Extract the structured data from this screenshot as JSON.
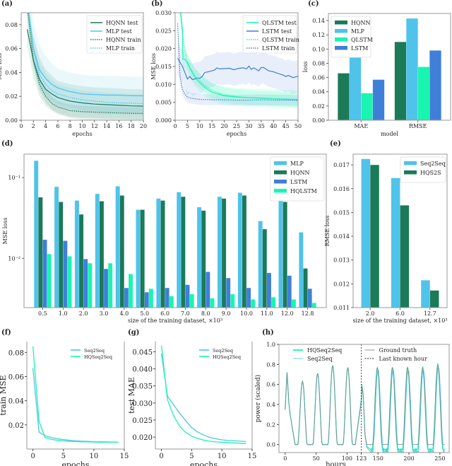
{
  "figure_labels": [
    "(a)",
    "(b)",
    "(c)",
    "(d)",
    "(e)",
    "(f)",
    "(g)",
    "(h)"
  ],
  "colors": {
    "hqnn": "#1b7a57",
    "mlp": "#4fc3ea",
    "qlstm": "#19f5b0",
    "lstm": "#3f7fd8",
    "ground_truth": "#888888",
    "axis": "#999999"
  },
  "chart_data": [
    {
      "id": "a",
      "type": "line",
      "title": "",
      "xlabel": "epochs",
      "ylabel": "MSE loss",
      "xlim": [
        0,
        20
      ],
      "ylim": [
        0,
        0.09
      ],
      "xticks": [
        0,
        2,
        4,
        6,
        8,
        10,
        12,
        14,
        16,
        18,
        20
      ],
      "yticks": [
        0.0,
        0.02,
        0.04,
        0.06,
        0.08
      ],
      "ytick_labels": [
        "0.00",
        "0.02",
        "0.04",
        "0.06",
        "0.08"
      ],
      "legend_position": "top-right",
      "series": [
        {
          "name": "HQNN test",
          "style": "solid",
          "color_key": "hqnn",
          "x": [
            1,
            2,
            3,
            4,
            5,
            6,
            8,
            10,
            12,
            14,
            16,
            18,
            20
          ],
          "y": [
            0.076,
            0.05,
            0.034,
            0.026,
            0.022,
            0.019,
            0.016,
            0.0145,
            0.0135,
            0.013,
            0.0125,
            0.012,
            0.0118
          ],
          "band": 0.014
        },
        {
          "name": "MLP test",
          "style": "solid",
          "color_key": "mlp",
          "x": [
            1,
            2,
            3,
            4,
            5,
            6,
            8,
            10,
            12,
            14,
            16,
            18,
            20
          ],
          "y": [
            0.1,
            0.06,
            0.042,
            0.035,
            0.03,
            0.027,
            0.024,
            0.022,
            0.0215,
            0.021,
            0.021,
            0.0205,
            0.0205
          ],
          "band": 0.016
        },
        {
          "name": "HQNN train",
          "style": "dotted",
          "color_key": "hqnn",
          "x": [
            1,
            2,
            3,
            4,
            5,
            6,
            8,
            10,
            12,
            14,
            16,
            18,
            20
          ],
          "y": [
            0.095,
            0.05,
            0.03,
            0.02,
            0.014,
            0.011,
            0.008,
            0.0072,
            0.0068,
            0.0064,
            0.0061,
            0.0058,
            0.0057
          ],
          "band": 0.005
        },
        {
          "name": "MLP train",
          "style": "dotted",
          "color_key": "mlp",
          "x": [
            1,
            2,
            3,
            4,
            5,
            6,
            8,
            10,
            12,
            14,
            16,
            18,
            20
          ],
          "y": [
            0.1,
            0.06,
            0.038,
            0.03,
            0.025,
            0.022,
            0.019,
            0.017,
            0.016,
            0.015,
            0.0145,
            0.0142,
            0.014
          ],
          "band": 0.008
        }
      ]
    },
    {
      "id": "b",
      "type": "line",
      "title": "",
      "xlabel": "epochs",
      "ylabel": "MSE loss",
      "xlim": [
        0,
        50
      ],
      "ylim": [
        0,
        0.03
      ],
      "xticks": [
        0,
        5,
        10,
        15,
        20,
        25,
        30,
        35,
        40,
        45,
        50
      ],
      "yticks": [
        0.0,
        0.005,
        0.01,
        0.015,
        0.02,
        0.025,
        0.03
      ],
      "ytick_labels": [
        "0.000",
        "0.005",
        "0.010",
        "0.015",
        "0.020",
        "0.025",
        "0.030"
      ],
      "legend_position": "top-right",
      "series": [
        {
          "name": "QLSTM test",
          "style": "solid",
          "color_key": "qlstm",
          "x": [
            2,
            3,
            3.1,
            4,
            5,
            6,
            8,
            10,
            12,
            15,
            20,
            25,
            30,
            35,
            40,
            45,
            50
          ],
          "y": [
            0.032,
            0.025,
            0.017,
            0.017,
            0.016,
            0.0145,
            0.012,
            0.0105,
            0.0092,
            0.0078,
            0.0068,
            0.0065,
            0.0063,
            0.0062,
            0.006,
            0.0059,
            0.0058
          ],
          "band": 0.0025
        },
        {
          "name": "LSTM test",
          "style": "solid",
          "color_key": "lstm",
          "x": [
            1,
            3,
            5,
            6,
            7,
            8,
            9,
            10,
            11,
            12,
            14,
            16,
            17,
            18,
            20,
            22,
            24,
            26,
            28,
            29,
            30,
            31,
            32,
            34,
            35,
            36,
            38,
            40,
            42,
            44,
            45,
            46,
            48,
            50
          ],
          "y": [
            0.0173,
            0.015,
            0.0115,
            0.0122,
            0.0113,
            0.0115,
            0.0118,
            0.0117,
            0.0122,
            0.0133,
            0.0136,
            0.014,
            0.0146,
            0.0143,
            0.0144,
            0.0145,
            0.0141,
            0.0145,
            0.0146,
            0.0143,
            0.0151,
            0.0142,
            0.0146,
            0.0138,
            0.0147,
            0.0147,
            0.0138,
            0.0135,
            0.013,
            0.0126,
            0.0122,
            0.0125,
            0.0119,
            0.0123
          ],
          "band": 0.0045
        },
        {
          "name": "QLSTM train",
          "style": "dotted",
          "color_key": "qlstm",
          "x": [
            2,
            3,
            4,
            5,
            6,
            8,
            10,
            12,
            15,
            20,
            25,
            30,
            35,
            40,
            45,
            50
          ],
          "y": [
            0.031,
            0.024,
            0.019,
            0.0165,
            0.0148,
            0.0125,
            0.011,
            0.0097,
            0.0083,
            0.0071,
            0.0066,
            0.0063,
            0.0061,
            0.006,
            0.0058,
            0.0057
          ],
          "band": 0.002
        },
        {
          "name": "LSTM train",
          "style": "dotted",
          "color_key": "lstm",
          "x": [
            1,
            2,
            3,
            4,
            5,
            6,
            8,
            10,
            15,
            20,
            25,
            30,
            35,
            40,
            45,
            50
          ],
          "y": [
            0.027,
            0.012,
            0.0085,
            0.0072,
            0.0065,
            0.0062,
            0.006,
            0.0058,
            0.0057,
            0.0057,
            0.0056,
            0.0056,
            0.0057,
            0.0056,
            0.0056,
            0.0055
          ],
          "band": 0.0015
        }
      ]
    },
    {
      "id": "c",
      "type": "bar",
      "title": "",
      "xlabel": "model",
      "ylabel": "loss",
      "categories": [
        "MAE",
        "RMSE"
      ],
      "ylim": [
        0,
        0.15
      ],
      "yticks": [
        0.0,
        0.02,
        0.04,
        0.06,
        0.08,
        0.1,
        0.12,
        0.14
      ],
      "ytick_labels": [
        "0.00",
        "0.02",
        "0.04",
        "0.06",
        "0.08",
        "0.10",
        "0.12",
        "0.14"
      ],
      "legend_position": "top-left",
      "series": [
        {
          "name": "HQNN",
          "color_key": "hqnn",
          "values": [
            0.066,
            0.11
          ]
        },
        {
          "name": "MLP",
          "color_key": "mlp",
          "values": [
            0.088,
            0.143
          ]
        },
        {
          "name": "QLSTM",
          "color_key": "qlstm",
          "values": [
            0.038,
            0.075
          ]
        },
        {
          "name": "LSTM",
          "color_key": "lstm",
          "values": [
            0.057,
            0.098
          ]
        }
      ]
    },
    {
      "id": "d",
      "type": "bar",
      "yscale": "log",
      "title": "",
      "xlabel": "size of the training dataset, ×10³",
      "ylabel": "MSE loss",
      "categories": [
        "0.5",
        "1.0",
        "2.0",
        "3.0",
        "4.0",
        "5.0",
        "6.0",
        "7.0",
        "8.0",
        "9.0",
        "10.0",
        "11.0",
        "12.0",
        "12.8"
      ],
      "ylim": [
        0.00245,
        0.195
      ],
      "yticks": [
        0.01,
        0.1
      ],
      "ytick_labels": [
        "10⁻²",
        "10⁻¹"
      ],
      "legend_position": "top-right",
      "series": [
        {
          "name": "MLP",
          "color_key": "mlp",
          "values": [
            0.162,
            0.077,
            0.052,
            0.063,
            0.078,
            0.04,
            0.055,
            0.066,
            0.043,
            0.058,
            0.065,
            0.029,
            0.062,
            0.021
          ]
        },
        {
          "name": "HQNN",
          "color_key": "hqnn",
          "values": [
            0.057,
            0.05,
            0.035,
            0.051,
            0.06,
            0.04,
            0.052,
            0.058,
            0.039,
            0.055,
            0.06,
            0.023,
            0.05,
            0.0075
          ]
        },
        {
          "name": "LSTM",
          "color_key": "lstm",
          "values": [
            0.017,
            0.0165,
            0.0098,
            0.0074,
            0.0043,
            0.0038,
            0.0043,
            0.0047,
            0.0068,
            0.0057,
            0.0043,
            0.0066,
            0.0061,
            0.0042
          ]
        },
        {
          "name": "HQLSTM",
          "color_key": "qlstm",
          "values": [
            0.0113,
            0.0106,
            0.0087,
            0.0087,
            0.0064,
            0.0042,
            0.0034,
            0.0036,
            0.0032,
            0.0036,
            0.0031,
            0.0033,
            0.0031,
            0.0028
          ]
        }
      ]
    },
    {
      "id": "e",
      "type": "bar",
      "title": "",
      "xlabel": "size of the training dataset, ×10³",
      "ylabel": "RMSE loss",
      "categories": [
        "2.0",
        "6.0",
        "12.7"
      ],
      "ylim": [
        0.011,
        0.01745
      ],
      "yticks": [
        0.011,
        0.012,
        0.013,
        0.014,
        0.015,
        0.016,
        0.017
      ],
      "ytick_labels": [
        "0.011",
        "0.012",
        "0.013",
        "0.014",
        "0.015",
        "0.016",
        "0.017"
      ],
      "legend_position": "top-right",
      "series": [
        {
          "name": "Seq2Seq",
          "color_key": "mlp",
          "values": [
            0.01725,
            0.01645,
            0.01215
          ]
        },
        {
          "name": "HQS2S",
          "color_key": "hqnn",
          "values": [
            0.017,
            0.0153,
            0.01172
          ]
        }
      ]
    },
    {
      "id": "f",
      "type": "line",
      "title": "",
      "xlabel": "epochs",
      "ylabel": "train MSE",
      "xlim": [
        -1,
        15
      ],
      "ylim": [
        0.0,
        0.089
      ],
      "xticks": [
        0,
        5,
        10,
        15
      ],
      "yticks": [
        0.02,
        0.04,
        0.06,
        0.08
      ],
      "ytick_labels": [
        "0.02",
        "0.04",
        "0.06",
        "0.08"
      ],
      "legend_position": "top-right",
      "series": [
        {
          "name": "Seq2Seq",
          "color_key": "mlp",
          "x": [
            0,
            1,
            2,
            3,
            4,
            5,
            6,
            7,
            8,
            9,
            10,
            11,
            12,
            13,
            14
          ],
          "y": [
            0.067,
            0.014,
            0.011,
            0.0095,
            0.0085,
            0.0078,
            0.0072,
            0.0068,
            0.0065,
            0.0063,
            0.0061,
            0.006,
            0.0059,
            0.0058,
            0.0057
          ]
        },
        {
          "name": "HQSeq2Seq",
          "color_key": "qlstm",
          "x": [
            0,
            1,
            2,
            3,
            4,
            5,
            6,
            7,
            8,
            9,
            10,
            11,
            12,
            13,
            14
          ],
          "y": [
            0.085,
            0.023,
            0.0095,
            0.008,
            0.0072,
            0.0067,
            0.0064,
            0.0062,
            0.006,
            0.0059,
            0.0058,
            0.0057,
            0.0056,
            0.0056,
            0.0055
          ]
        }
      ]
    },
    {
      "id": "g",
      "type": "line",
      "title": "",
      "xlabel": "epochs",
      "ylabel": "test MAE",
      "xlim": [
        -1,
        15
      ],
      "ylim": [
        0.0165,
        0.048
      ],
      "xticks": [
        0,
        5,
        10,
        15
      ],
      "yticks": [
        0.02,
        0.025,
        0.03,
        0.035,
        0.04,
        0.045
      ],
      "ytick_labels": [
        "0.020",
        "0.025",
        "0.030",
        "0.035",
        "0.040",
        "0.045"
      ],
      "legend_position": "top-right",
      "series": [
        {
          "name": "Seq2Seq",
          "color_key": "mlp",
          "x": [
            0,
            1,
            2,
            3,
            4,
            5,
            6,
            7,
            8,
            9,
            10,
            11,
            12,
            13,
            14
          ],
          "y": [
            0.0445,
            0.032,
            0.0295,
            0.027,
            0.0248,
            0.0228,
            0.0215,
            0.0206,
            0.0199,
            0.0195,
            0.0192,
            0.019,
            0.0189,
            0.0188,
            0.0187
          ]
        },
        {
          "name": "HQSeq2Seq",
          "color_key": "qlstm",
          "x": [
            0,
            1,
            2,
            3,
            4,
            5,
            6,
            7,
            8,
            9,
            10,
            11,
            12,
            13,
            14
          ],
          "y": [
            0.0468,
            0.031,
            0.0263,
            0.0232,
            0.0214,
            0.0203,
            0.0196,
            0.0191,
            0.0188,
            0.0186,
            0.0185,
            0.0184,
            0.0183,
            0.0182,
            0.0181
          ]
        }
      ]
    },
    {
      "id": "h",
      "type": "line",
      "title": "",
      "xlabel": "hours",
      "ylabel": "power (scaled)",
      "xlim": [
        -10,
        265
      ],
      "ylim": [
        -0.08,
        1.0
      ],
      "xticks": [
        0,
        50,
        100,
        123,
        150,
        200,
        250
      ],
      "yticks": [
        0.0,
        0.2,
        0.4,
        0.6,
        0.8,
        1.0
      ],
      "ytick_labels": [
        "0.0",
        "0.2",
        "0.4",
        "0.6",
        "0.8",
        "1.0"
      ],
      "last_known_hour": 123,
      "legend_position": "top",
      "legend": [
        "HQSeq2Seq",
        "Seq2Seq",
        "Ground truth",
        "Last known hour"
      ],
      "daily_peaks_history": [
        0.73,
        0.63,
        0.71,
        0.79,
        0.77
      ],
      "daily_peaks_forecast": [
        0.77,
        0.77,
        0.77,
        0.77,
        0.8
      ],
      "forecast_min": -0.05
    }
  ]
}
